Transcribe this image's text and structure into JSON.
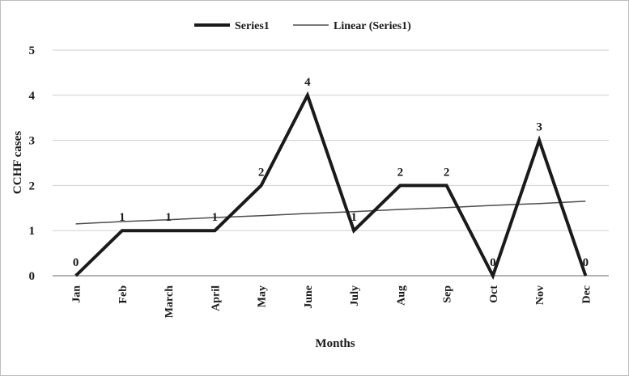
{
  "chart_data": {
    "type": "line",
    "categories": [
      "Jan",
      "Feb",
      "March",
      "April",
      "May",
      "June",
      "July",
      "Aug",
      "Sep",
      "Oct",
      "Nov",
      "Dec"
    ],
    "series": [
      {
        "name": "Series1",
        "values": [
          0,
          1,
          1,
          1,
          2,
          4,
          1,
          2,
          2,
          0,
          3,
          0
        ],
        "color": "#1a1a1a"
      },
      {
        "name": "Linear (Series1)",
        "values": [
          1.15,
          1.2,
          1.24,
          1.29,
          1.33,
          1.38,
          1.42,
          1.47,
          1.51,
          1.56,
          1.6,
          1.65
        ],
        "color": "#4d4d4d"
      }
    ],
    "data_labels": [
      "0",
      "1",
      "1",
      "1",
      "2",
      "4",
      "1",
      "2",
      "2",
      "0",
      "3",
      "0"
    ],
    "xlabel": "Months",
    "ylabel": "CCHF cases",
    "ylim": [
      0,
      5
    ],
    "yticks": [
      "0",
      "1",
      "2",
      "3",
      "4",
      "5"
    ],
    "grid": true,
    "legend_position": "top-center"
  }
}
